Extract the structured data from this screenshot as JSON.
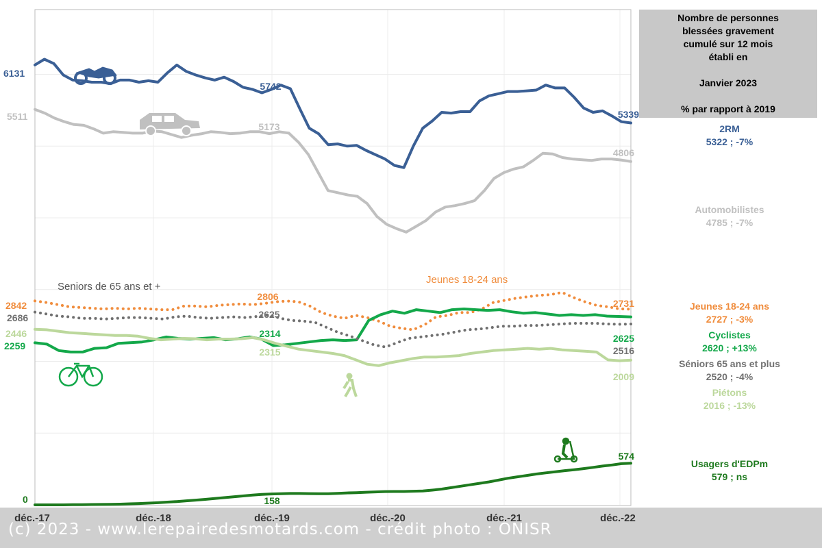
{
  "header": {
    "lines": [
      "Nombre de personnes",
      "blessées gravement",
      "cumulé sur 12 mois",
      "établi en",
      "",
      "Janvier 2023",
      "",
      "% par rapport à 2019"
    ]
  },
  "legend": [
    {
      "name": "2RM",
      "value": "5322 ; -7%",
      "color": "#3a5f95"
    },
    {
      "name": "Automobilistes",
      "value": "4785 ; -7%",
      "color": "#c0c0c0"
    },
    {
      "name": "Jeunes 18-24 ans",
      "value": "2727 ; -3%",
      "color": "#f08c3c"
    },
    {
      "name": "Cyclistes",
      "value": "2620 ; +13%",
      "color": "#13a84a"
    },
    {
      "name": "Séniors 65 ans et plus",
      "value": "2520 ; -4%",
      "color": "#707070"
    },
    {
      "name": "Piétons",
      "value": "2016 ; -13%",
      "color": "#bcd89c"
    },
    {
      "name": "Usagers d'EDPm",
      "value": "579 ; ns",
      "color": "#1e7a1e"
    }
  ],
  "footer": {
    "credit": "(c) 2023 - www.lerepairedesmotards.com - crédit photo : ONISR"
  },
  "chart_data": {
    "type": "line",
    "x_tick_labels": [
      "déc.-17",
      "déc.-18",
      "déc.-19",
      "déc.-20",
      "déc.-21",
      "déc.-22"
    ],
    "x_start": "2017-12",
    "x_end": "2022-12",
    "grid": true,
    "series": [
      {
        "name": "2RM",
        "color": "#3a5f95",
        "style": "solid",
        "values": [
          6131,
          6210,
          6150,
          5990,
          5920,
          5910,
          5890,
          5890,
          5870,
          5920,
          5920,
          5890,
          5910,
          5890,
          6020,
          6130,
          6040,
          5990,
          5950,
          5920,
          5960,
          5900,
          5820,
          5790,
          5742,
          5790,
          5850,
          5800,
          5520,
          5250,
          5170,
          5020,
          5030,
          5000,
          5010,
          4940,
          4880,
          4820,
          4730,
          4700,
          5000,
          5250,
          5350,
          5470,
          5460,
          5480,
          5480,
          5630,
          5700,
          5730,
          5760,
          5760,
          5770,
          5780,
          5850,
          5810,
          5810,
          5680,
          5530,
          5470,
          5490,
          5420,
          5339,
          5322
        ]
      },
      {
        "name": "Automobilistes",
        "color": "#c0c0c0",
        "style": "solid",
        "values": [
          5511,
          5460,
          5390,
          5340,
          5300,
          5290,
          5240,
          5180,
          5200,
          5190,
          5180,
          5180,
          5210,
          5200,
          5160,
          5120,
          5150,
          5170,
          5200,
          5190,
          5173,
          5180,
          5200,
          5200,
          5173,
          5200,
          5180,
          5050,
          4880,
          4630,
          4380,
          4350,
          4320,
          4300,
          4200,
          4020,
          3910,
          3850,
          3800,
          3880,
          3960,
          4080,
          4150,
          4170,
          4200,
          4240,
          4380,
          4550,
          4630,
          4680,
          4710,
          4800,
          4900,
          4890,
          4840,
          4820,
          4810,
          4800,
          4820,
          4820,
          4806,
          4785
        ]
      },
      {
        "name": "Jeunes 18-24 ans",
        "color": "#f08c3c",
        "style": "dotted",
        "values": [
          2842,
          2820,
          2790,
          2760,
          2750,
          2740,
          2730,
          2740,
          2730,
          2740,
          2730,
          2720,
          2720,
          2770,
          2770,
          2760,
          2780,
          2790,
          2800,
          2790,
          2806,
          2830,
          2840,
          2830,
          2770,
          2680,
          2630,
          2600,
          2640,
          2610,
          2560,
          2490,
          2460,
          2440,
          2510,
          2620,
          2640,
          2680,
          2680,
          2730,
          2820,
          2850,
          2880,
          2900,
          2920,
          2930,
          2960,
          2890,
          2830,
          2780,
          2760,
          2731,
          2727
        ]
      },
      {
        "name": "Cyclistes",
        "color": "#13a84a",
        "style": "solid",
        "values": [
          2259,
          2240,
          2150,
          2130,
          2130,
          2180,
          2190,
          2250,
          2260,
          2270,
          2300,
          2340,
          2320,
          2310,
          2320,
          2330,
          2300,
          2314,
          2340,
          2310,
          2220,
          2230,
          2250,
          2270,
          2290,
          2300,
          2290,
          2300,
          2570,
          2650,
          2700,
          2670,
          2720,
          2700,
          2680,
          2720,
          2730,
          2720,
          2710,
          2720,
          2690,
          2670,
          2680,
          2660,
          2640,
          2650,
          2640,
          2650,
          2630,
          2625,
          2620
        ]
      },
      {
        "name": "Séniors 65 ans et plus",
        "color": "#707070",
        "style": "dotted",
        "values": [
          2686,
          2660,
          2630,
          2620,
          2600,
          2600,
          2590,
          2600,
          2610,
          2610,
          2600,
          2590,
          2620,
          2630,
          2610,
          2600,
          2610,
          2620,
          2610,
          2625,
          2650,
          2600,
          2570,
          2560,
          2540,
          2470,
          2400,
          2350,
          2290,
          2230,
          2200,
          2260,
          2320,
          2340,
          2360,
          2380,
          2410,
          2440,
          2450,
          2470,
          2490,
          2490,
          2500,
          2500,
          2510,
          2520,
          2530,
          2530,
          2530,
          2520,
          2516,
          2520
        ]
      },
      {
        "name": "Piétons",
        "color": "#bcd89c",
        "style": "solid",
        "values": [
          2446,
          2440,
          2420,
          2400,
          2390,
          2380,
          2370,
          2360,
          2360,
          2350,
          2320,
          2300,
          2310,
          2320,
          2315,
          2300,
          2310,
          2310,
          2315,
          2330,
          2300,
          2250,
          2210,
          2170,
          2150,
          2130,
          2110,
          2080,
          2020,
          1960,
          1940,
          1980,
          2010,
          2040,
          2060,
          2060,
          2070,
          2080,
          2110,
          2130,
          2150,
          2160,
          2170,
          2180,
          2170,
          2180,
          2160,
          2150,
          2140,
          2130,
          2020,
          2009,
          2016
        ]
      },
      {
        "name": "Usagers d'EDPm",
        "color": "#1e7a1e",
        "style": "solid",
        "values": [
          0,
          0,
          0,
          0,
          2,
          3,
          5,
          6,
          8,
          10,
          14,
          18,
          24,
          30,
          38,
          46,
          56,
          66,
          76,
          88,
          100,
          112,
          124,
          136,
          146,
          152,
          156,
          158,
          158,
          157,
          156,
          156,
          160,
          166,
          170,
          176,
          180,
          185,
          186,
          186,
          190,
          194,
          205,
          220,
          240,
          260,
          280,
          300,
          320,
          345,
          370,
          390,
          410,
          430,
          446,
          460,
          476,
          490,
          505,
          522,
          540,
          556,
          574,
          579
        ]
      }
    ],
    "value_labels": [
      {
        "text": "6131",
        "series": "2RM"
      },
      {
        "text": "5742",
        "series": "2RM"
      },
      {
        "text": "5339",
        "series": "2RM"
      },
      {
        "text": "5511",
        "series": "Automobilistes"
      },
      {
        "text": "5173",
        "series": "Automobilistes"
      },
      {
        "text": "4806",
        "series": "Automobilistes"
      },
      {
        "text": "2842",
        "series": "Jeunes 18-24 ans"
      },
      {
        "text": "2806",
        "series": "Jeunes 18-24 ans"
      },
      {
        "text": "2731",
        "series": "Jeunes 18-24 ans"
      },
      {
        "text": "2686",
        "series": "Séniors 65 ans et plus"
      },
      {
        "text": "2625",
        "series": "Séniors 65 ans et plus"
      },
      {
        "text": "2516",
        "series": "Séniors 65 ans et plus"
      },
      {
        "text": "2446",
        "series": "Piétons"
      },
      {
        "text": "2315",
        "series": "Piétons"
      },
      {
        "text": "2009",
        "series": "Piétons"
      },
      {
        "text": "2259",
        "series": "Cyclistes"
      },
      {
        "text": "2314",
        "series": "Cyclistes"
      },
      {
        "text": "2625",
        "series": "Cyclistes"
      },
      {
        "text": "0",
        "series": "Usagers d'EDPm"
      },
      {
        "text": "158",
        "series": "Usagers d'EDPm"
      },
      {
        "text": "574",
        "series": "Usagers d'EDPm"
      }
    ],
    "annotations": [
      {
        "text": "Seniors de 65 ans et +",
        "color": "#555555"
      },
      {
        "text": "Jeunes 18-24 ans",
        "color": "#f08c3c"
      }
    ],
    "icons": [
      "motorcycle-icon",
      "car-icon",
      "bicycle-icon",
      "pedestrian-icon",
      "scooter-icon"
    ]
  }
}
